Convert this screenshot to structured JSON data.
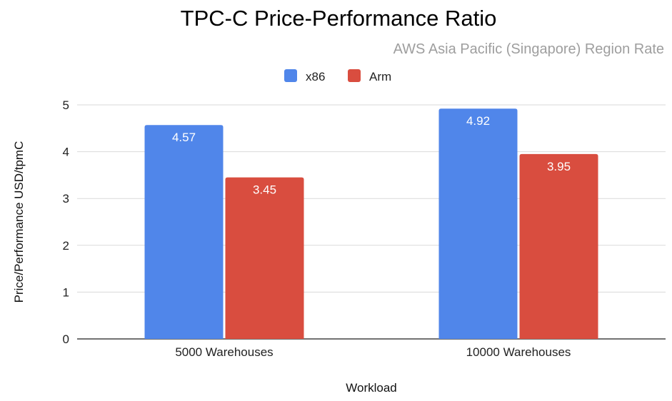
{
  "chart_data": {
    "type": "bar",
    "title": "TPC-C Price-Performance Ratio",
    "subtitle": "AWS Asia Pacific (Singapore) Region Rate",
    "xlabel": "Workload",
    "ylabel": "Price/Performance USD/tpmC",
    "categories": [
      "5000 Warehouses",
      "10000 Warehouses"
    ],
    "series": [
      {
        "name": "x86",
        "color": "#5086ea",
        "values": [
          4.57,
          4.92
        ],
        "labels": [
          "4.57",
          "4.92"
        ]
      },
      {
        "name": "Arm",
        "color": "#d94d3f",
        "values": [
          3.45,
          3.95
        ],
        "labels": [
          "3.45",
          "3.95"
        ]
      }
    ],
    "ylim": [
      0,
      5
    ],
    "yticks": [
      "0",
      "1",
      "2",
      "3",
      "4",
      "5"
    ],
    "grid": true,
    "legend_position": "top-center"
  }
}
